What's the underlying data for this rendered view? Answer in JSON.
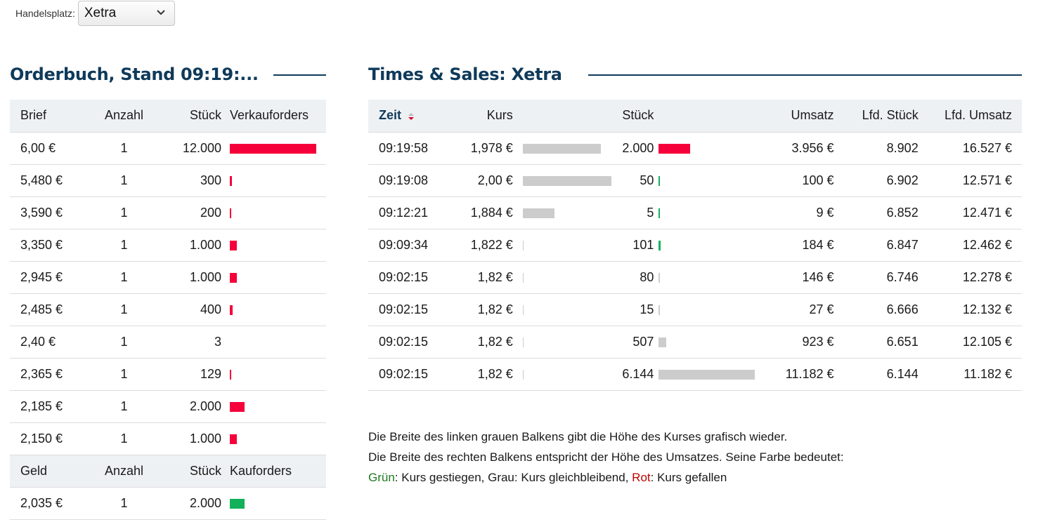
{
  "handelsplatz": {
    "label": "Handelsplatz:",
    "selected": "Xetra"
  },
  "orderbuch": {
    "title": "Orderbuch, Stand 09:19:...",
    "brief_header": {
      "col1": "Brief",
      "col2": "Anzahl",
      "col3": "Stück",
      "col4": "Verkauforders"
    },
    "brief_rows": [
      {
        "preis": "6,00 €",
        "anzahl": "1",
        "stueck": "12.000",
        "bar_fraction": 1.0
      },
      {
        "preis": "5,480 €",
        "anzahl": "1",
        "stueck": "300",
        "bar_fraction": 0.025
      },
      {
        "preis": "3,590 €",
        "anzahl": "1",
        "stueck": "200",
        "bar_fraction": 0.017
      },
      {
        "preis": "3,350 €",
        "anzahl": "1",
        "stueck": "1.000",
        "bar_fraction": 0.083
      },
      {
        "preis": "2,945 €",
        "anzahl": "1",
        "stueck": "1.000",
        "bar_fraction": 0.083
      },
      {
        "preis": "2,485 €",
        "anzahl": "1",
        "stueck": "400",
        "bar_fraction": 0.033
      },
      {
        "preis": "2,40 €",
        "anzahl": "1",
        "stueck": "3",
        "bar_fraction": 0.0
      },
      {
        "preis": "2,365 €",
        "anzahl": "1",
        "stueck": "129",
        "bar_fraction": 0.011
      },
      {
        "preis": "2,185 €",
        "anzahl": "1",
        "stueck": "2.000",
        "bar_fraction": 0.167
      },
      {
        "preis": "2,150 €",
        "anzahl": "1",
        "stueck": "1.000",
        "bar_fraction": 0.083
      }
    ],
    "geld_header": {
      "col1": "Geld",
      "col2": "Anzahl",
      "col3": "Stück",
      "col4": "Kauforders"
    },
    "geld_rows": [
      {
        "preis": "2,035 €",
        "anzahl": "1",
        "stueck": "2.000",
        "bar_fraction": 0.167
      }
    ],
    "colors": {
      "sell": "#f5003a",
      "buy": "#12b15a"
    }
  },
  "times_sales": {
    "title": "Times & Sales: Xetra",
    "header": {
      "zeit": "Zeit",
      "kurs": "Kurs",
      "stueck": "Stück",
      "umsatz": "Umsatz",
      "lfd_stueck": "Lfd. Stück",
      "lfd_umsatz": "Lfd. Umsatz"
    },
    "rows": [
      {
        "zeit": "09:19:58",
        "kurs": "1,978 €",
        "kurs_fraction": 0.88,
        "stueck": "2.000",
        "umsatz_fraction": 0.33,
        "trend": "down",
        "umsatz": "3.956 €",
        "lfd_stueck": "8.902",
        "lfd_umsatz": "16.527 €"
      },
      {
        "zeit": "09:19:08",
        "kurs": "2,00 €",
        "kurs_fraction": 1.0,
        "stueck": "50",
        "umsatz_fraction": 0.009,
        "trend": "up",
        "umsatz": "100 €",
        "lfd_stueck": "6.902",
        "lfd_umsatz": "12.571 €"
      },
      {
        "zeit": "09:12:21",
        "kurs": "1,884 €",
        "kurs_fraction": 0.36,
        "stueck": "5",
        "umsatz_fraction": 0.009,
        "trend": "up",
        "umsatz": "9 €",
        "lfd_stueck": "6.852",
        "lfd_umsatz": "12.471 €"
      },
      {
        "zeit": "09:09:34",
        "kurs": "1,822 €",
        "kurs_fraction": 0.008,
        "stueck": "101",
        "umsatz_fraction": 0.022,
        "trend": "up",
        "umsatz": "184 €",
        "lfd_stueck": "6.847",
        "lfd_umsatz": "12.462 €"
      },
      {
        "zeit": "09:02:15",
        "kurs": "1,82 €",
        "kurs_fraction": 0.008,
        "stueck": "80",
        "umsatz_fraction": 0.013,
        "trend": "flat",
        "umsatz": "146 €",
        "lfd_stueck": "6.746",
        "lfd_umsatz": "12.278 €"
      },
      {
        "zeit": "09:02:15",
        "kurs": "1,82 €",
        "kurs_fraction": 0.008,
        "stueck": "15",
        "umsatz_fraction": 0.009,
        "trend": "flat",
        "umsatz": "27 €",
        "lfd_stueck": "6.666",
        "lfd_umsatz": "12.132 €"
      },
      {
        "zeit": "09:02:15",
        "kurs": "1,82 €",
        "kurs_fraction": 0.008,
        "stueck": "507",
        "umsatz_fraction": 0.083,
        "trend": "flat",
        "umsatz": "923 €",
        "lfd_stueck": "6.651",
        "lfd_umsatz": "12.105 €"
      },
      {
        "zeit": "09:02:15",
        "kurs": "1,82 €",
        "kurs_fraction": 0.008,
        "stueck": "6.144",
        "umsatz_fraction": 1.0,
        "trend": "flat",
        "umsatz": "11.182 €",
        "lfd_stueck": "6.144",
        "lfd_umsatz": "11.182 €"
      }
    ],
    "colors": {
      "up": "#12b15a",
      "flat": "#cccccc",
      "down": "#f5003a",
      "kurs_bar": "#cccccc"
    }
  },
  "notes": {
    "line1": "Die Breite des linken grauen Balkens gibt die Höhe des Kurses grafisch wieder.",
    "line2": "Die Breite des rechten Balkens entspricht der Höhe des Umsatzes. Seine Farbe bedeutet:",
    "gruen": "Grün",
    "part_a": ": Kurs gestiegen, Grau: Kurs gleichbleibend, ",
    "rot": "Rot",
    "part_b": ": Kurs gefallen"
  },
  "icons": {
    "dropdown": "chevron-down-icon",
    "sort": "sort-icon"
  }
}
